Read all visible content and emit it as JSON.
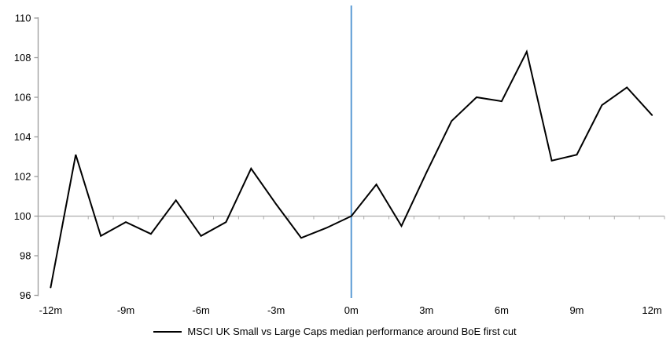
{
  "chart_data": {
    "type": "line",
    "x": [
      -12,
      -11,
      -10,
      -9,
      -8,
      -7,
      -6,
      -5,
      -4,
      -3,
      -2,
      -1,
      0,
      1,
      2,
      3,
      4,
      5,
      6,
      7,
      8,
      9,
      10,
      11,
      12
    ],
    "series": [
      {
        "name": "MSCI UK Small vs Large Caps median performance around BoE first cut",
        "values": [
          96.4,
          103.1,
          99.0,
          99.7,
          99.1,
          100.8,
          99.0,
          99.7,
          102.4,
          100.6,
          98.9,
          99.4,
          100.0,
          101.6,
          99.5,
          102.2,
          104.8,
          106.0,
          105.8,
          108.3,
          102.8,
          103.1,
          105.6,
          106.5,
          105.1
        ]
      }
    ],
    "title": "",
    "xlabel": "",
    "ylabel": "",
    "ylim": [
      96,
      110
    ],
    "xlim": [
      -12.5,
      12.5
    ],
    "y_ticks": [
      96,
      98,
      100,
      102,
      104,
      106,
      108,
      110
    ],
    "x_ticks": [
      -12,
      -9,
      -6,
      -3,
      0,
      3,
      6,
      9,
      12
    ],
    "x_tick_labels": [
      "-12m",
      "-9m",
      "-6m",
      "-3m",
      "0m",
      "3m",
      "6m",
      "9m",
      "12m"
    ],
    "baseline_value": 100,
    "event_line_x": 0,
    "grid": false,
    "legend_position": "bottom",
    "colors": {
      "series_line": "#000000",
      "event_line": "#5B9BD5",
      "baseline_line": "#ADADAD",
      "axis_line": "#9B9B9B",
      "tick_label": "#000000"
    }
  },
  "legend": {
    "label": "MSCI UK Small vs Large Caps median performance around BoE first cut"
  }
}
